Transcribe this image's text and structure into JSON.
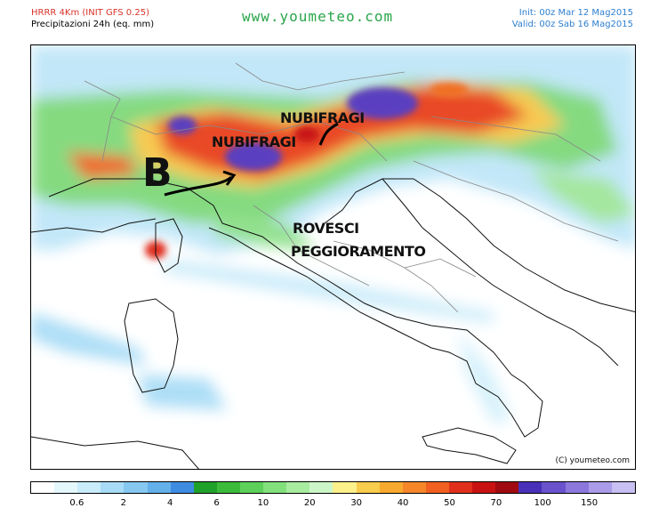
{
  "header": {
    "model_title": "HRRR 4Km (INIT GFS 0.25)",
    "precip_title": "Precipitazioni 24h (eq. mm)",
    "site": "www.youmeteo.com",
    "init_time": "Init: 00z Mar 12 Mag2015",
    "valid_time": "Valid: 00z Sab 16 Mag2015"
  },
  "map": {
    "labels": {
      "nubifragi_1": "NUBIFRAGI",
      "nubifragi_2": "NUBIFRAGI",
      "low": "B",
      "rovesci": "ROVESCI",
      "peggioramento": "PEGGIORAMENTO"
    },
    "copyright": "(C) youmeteo.com"
  },
  "legend": {
    "colors": [
      "#ffffff",
      "#e4f7fb",
      "#c8ecfa",
      "#a8dcf6",
      "#86c8f0",
      "#64b0ea",
      "#3e8ce2",
      "#1fa12a",
      "#3cbb3a",
      "#5dd05a",
      "#82e07c",
      "#a8eca0",
      "#cdf6c8",
      "#fbf08a",
      "#f8cc4c",
      "#f7aa2e",
      "#f5862a",
      "#f06020",
      "#e0301c",
      "#c81212",
      "#a00a10",
      "#4830b8",
      "#6a52cc",
      "#8c78dc",
      "#aa9ce8",
      "#c8bff2"
    ],
    "tick_labels": [
      "0.6",
      "2",
      "4",
      "6",
      "10",
      "20",
      "30",
      "40",
      "50",
      "70",
      "100",
      "150"
    ],
    "tick_positions": [
      2,
      4,
      6,
      8,
      10,
      12,
      14,
      16,
      18,
      20,
      22,
      24
    ]
  }
}
